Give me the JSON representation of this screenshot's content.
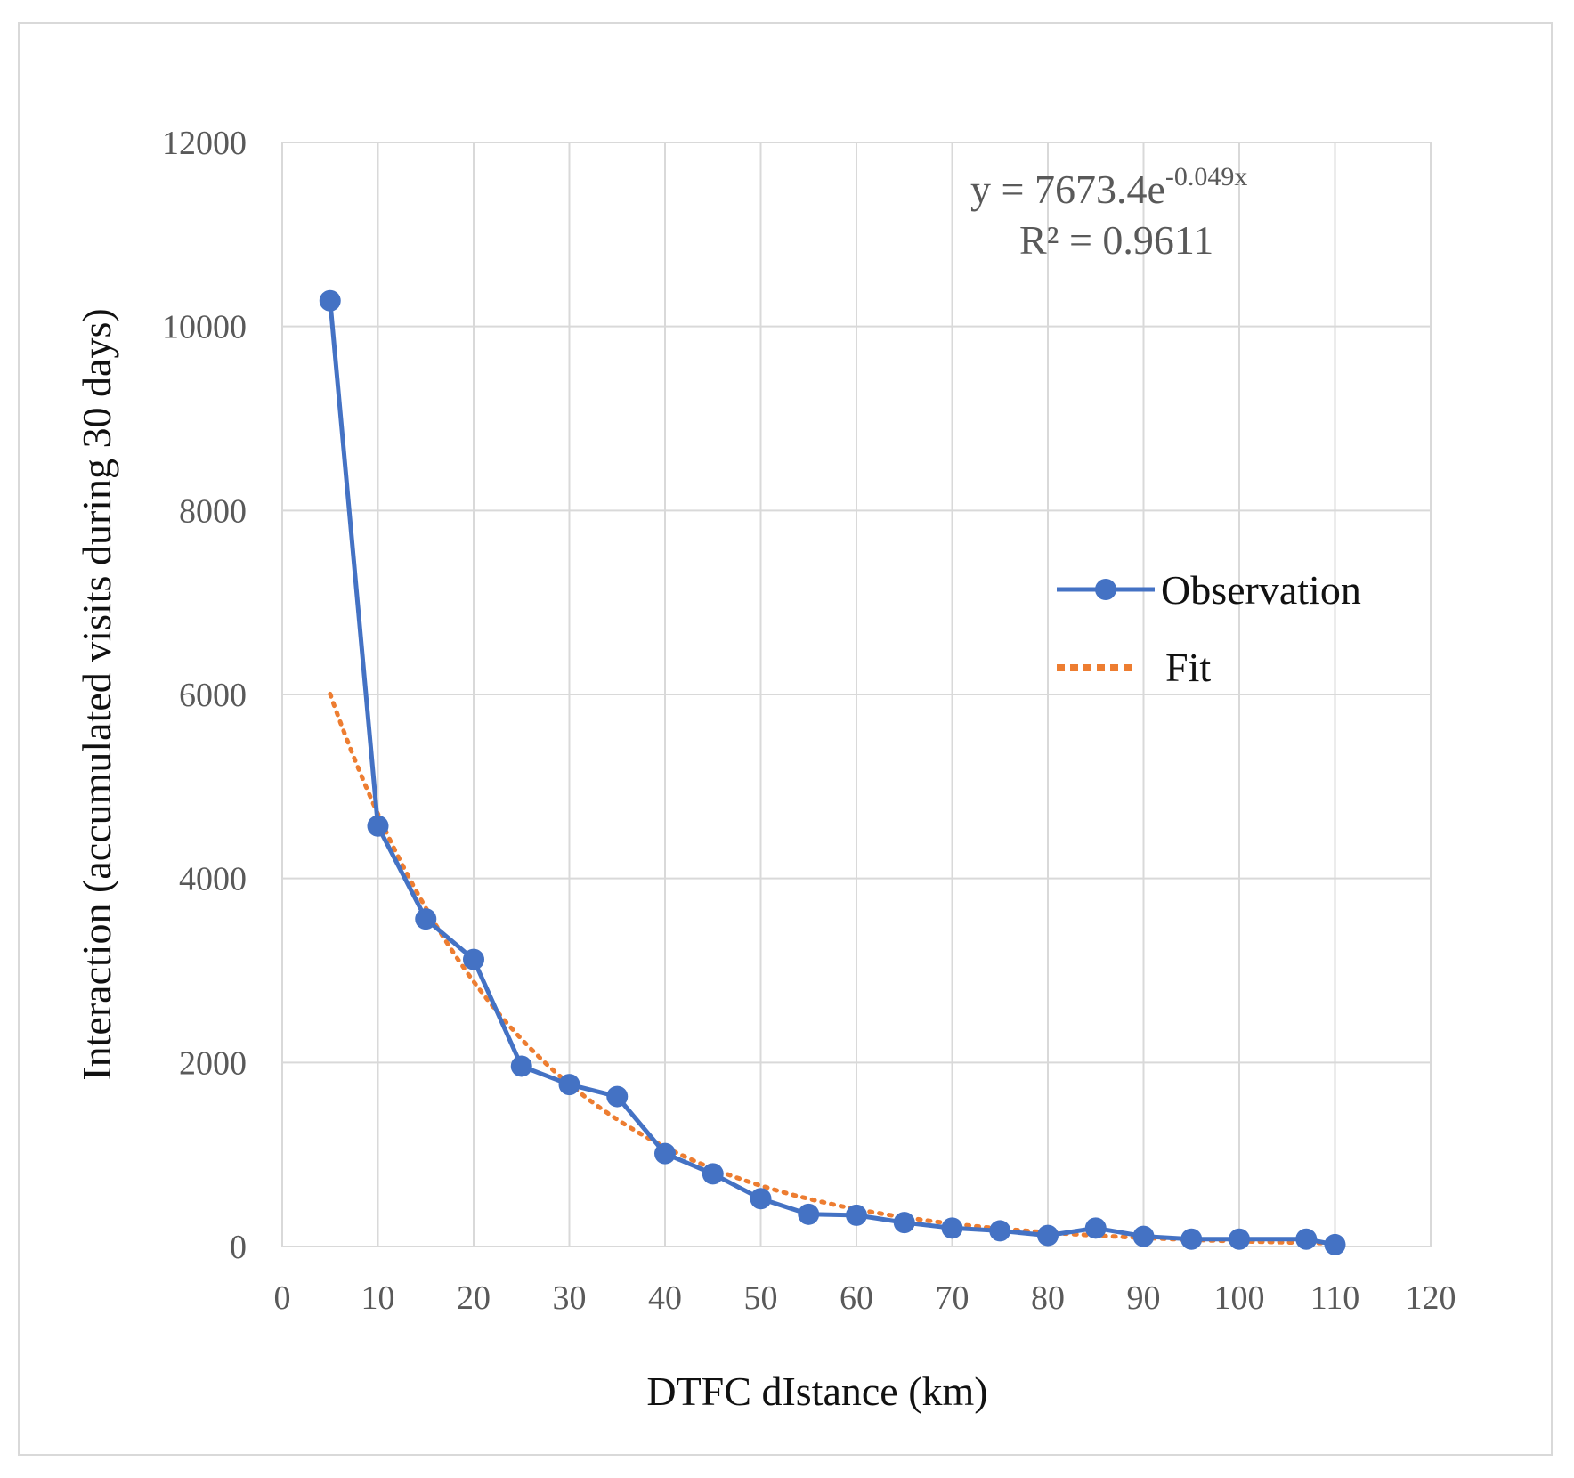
{
  "chart_data": {
    "type": "line",
    "title": "",
    "xlabel": "DTFC dIstance (km)",
    "ylabel": "Interaction  (accumulated visits during 30 days)",
    "xlim": [
      0,
      120
    ],
    "ylim": [
      0,
      12000
    ],
    "xticks": [
      0,
      10,
      20,
      30,
      40,
      50,
      60,
      70,
      80,
      90,
      100,
      110,
      120
    ],
    "yticks": [
      0,
      2000,
      4000,
      6000,
      8000,
      10000,
      12000
    ],
    "grid": true,
    "legend_position": "right",
    "colors": {
      "observation": "#4472C4",
      "fit": "#ED7D31",
      "grid": "#d9d9d9"
    },
    "series": [
      {
        "name": "Observation",
        "style": "line-with-markers",
        "x": [
          5,
          10,
          15,
          20,
          25,
          30,
          35,
          40,
          45,
          50,
          55,
          60,
          65,
          70,
          75,
          80,
          85,
          90,
          95,
          100,
          107,
          110
        ],
        "y": [
          10280,
          4570,
          3560,
          3120,
          1960,
          1760,
          1630,
          1010,
          790,
          520,
          350,
          340,
          260,
          200,
          170,
          120,
          200,
          110,
          80,
          80,
          80,
          20
        ]
      },
      {
        "name": "Fit",
        "style": "dotted",
        "equation": {
          "a": 7673.4,
          "b": -0.049
        },
        "x_range": [
          5,
          110
        ]
      }
    ],
    "annotations": {
      "equation_prefix": "y = 7673.4e",
      "equation_exponent": "-0.049x",
      "r_squared": "R² = 0.9611"
    }
  }
}
